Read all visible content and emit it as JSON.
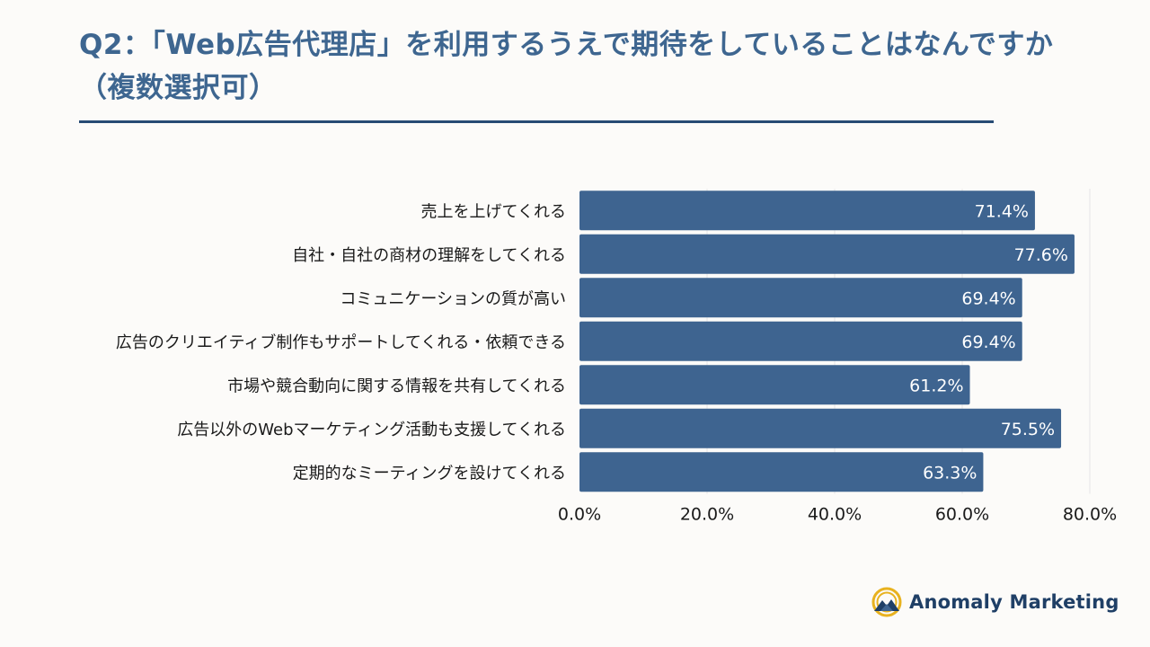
{
  "title": "Q2：「Web広告代理店」を利用するうえで期待をしていることはなんですか（複数選択可）",
  "brand": {
    "name": "Anomaly Marketing",
    "icon": "mountain-sun-logo-icon"
  },
  "colors": {
    "bar": "#3e6490",
    "title": "#3e6690",
    "rule": "#274b74",
    "grid": "#e6e6e6",
    "background": "#fcfbf9"
  },
  "chart_data": {
    "type": "bar",
    "orientation": "horizontal",
    "categories": [
      "売上を上げてくれる",
      "自社・自社の商材の理解をしてくれる",
      "コミュニケーションの質が高い",
      "広告のクリエイティブ制作もサポートしてくれる・依頼できる",
      "市場や競合動向に関する情報を共有してくれる",
      "広告以外のWebマーケティング活動も支援してくれる",
      "定期的なミーティングを設けてくれる"
    ],
    "values": [
      71.4,
      77.6,
      69.4,
      69.4,
      61.2,
      75.5,
      63.3
    ],
    "value_labels": [
      "71.4%",
      "77.6%",
      "69.4%",
      "69.4%",
      "61.2%",
      "75.5%",
      "63.3%"
    ],
    "x_ticks": [
      0,
      20,
      40,
      60,
      80
    ],
    "x_tick_labels": [
      "0.0%",
      "20.0%",
      "40.0%",
      "60.0%",
      "80.0%"
    ],
    "xlim": [
      0,
      80
    ],
    "xlabel": "",
    "ylabel": "",
    "grid": true,
    "legend": "none"
  }
}
